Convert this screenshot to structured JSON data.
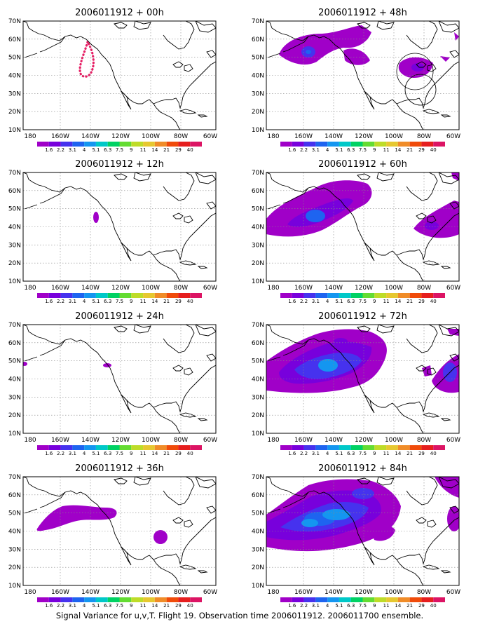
{
  "caption": "Signal Variance for u,v,T. Flight 19. Observation time 2006011912. 2006011700 ensemble.",
  "lon_labels": [
    "180",
    "160W",
    "140W",
    "120W",
    "100W",
    "80W",
    "60W"
  ],
  "lat_labels": [
    "70N",
    "60N",
    "50N",
    "40N",
    "30N",
    "20N",
    "10N"
  ],
  "colorbar": {
    "levels": [
      "1.6",
      "2.2",
      "3.1",
      "4",
      "5.1",
      "6.3",
      "7.5",
      "9",
      "11",
      "14",
      "21",
      "29",
      "40"
    ],
    "colors": [
      "#a000c8",
      "#7800dc",
      "#4632ee",
      "#1e64f0",
      "#1496f0",
      "#00c8c8",
      "#00d264",
      "#64dc32",
      "#bedc28",
      "#e6c830",
      "#f08c28",
      "#f04b0a",
      "#e61e1e",
      "#dc1464"
    ]
  },
  "panels": [
    {
      "title": "2006011912 + 00h",
      "lead_hours": 0
    },
    {
      "title": "2006011912 + 48h",
      "lead_hours": 48
    },
    {
      "title": "2006011912 + 12h",
      "lead_hours": 12
    },
    {
      "title": "2006011912 + 60h",
      "lead_hours": 60
    },
    {
      "title": "2006011912 + 24h",
      "lead_hours": 24
    },
    {
      "title": "2006011912 + 72h",
      "lead_hours": 72
    },
    {
      "title": "2006011912 + 36h",
      "lead_hours": 36
    },
    {
      "title": "2006011912 + 84h",
      "lead_hours": 84
    }
  ]
}
